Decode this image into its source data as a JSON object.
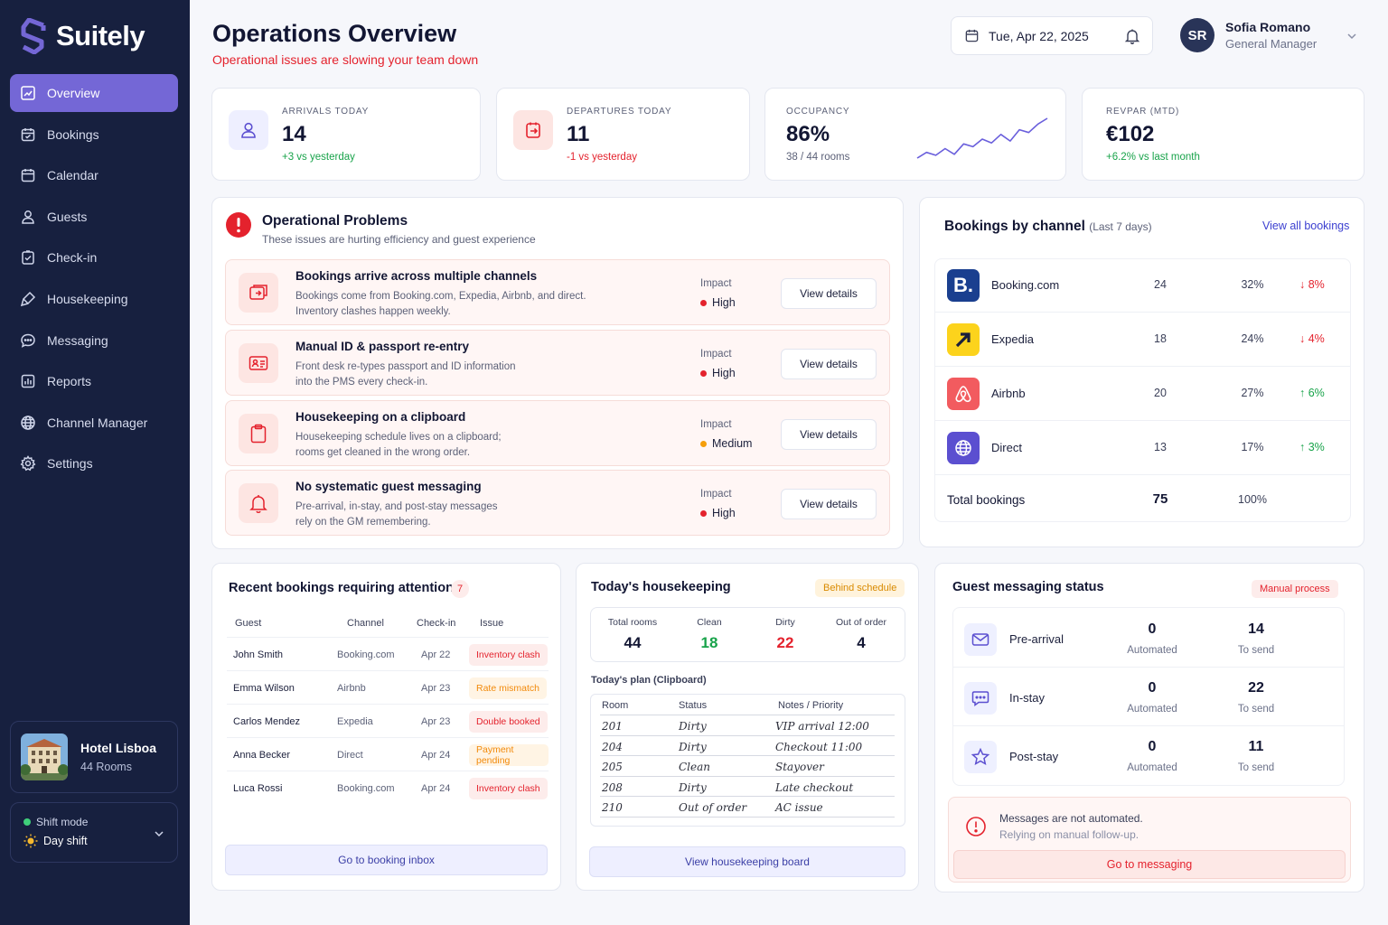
{
  "brand": {
    "name": "Suitely"
  },
  "nav": [
    {
      "label": "Overview",
      "icon": "overview-icon"
    },
    {
      "label": "Bookings",
      "icon": "bookings-icon"
    },
    {
      "label": "Calendar",
      "icon": "calendar-icon"
    },
    {
      "label": "Guests",
      "icon": "guests-icon"
    },
    {
      "label": "Check-in",
      "icon": "checkin-icon"
    },
    {
      "label": "Housekeeping",
      "icon": "housekeeping-icon"
    },
    {
      "label": "Messaging",
      "icon": "messaging-icon"
    },
    {
      "label": "Reports",
      "icon": "reports-icon"
    },
    {
      "label": "Channel Manager",
      "icon": "globe-icon"
    },
    {
      "label": "Settings",
      "icon": "gear-icon"
    }
  ],
  "hotel": {
    "name": "Hotel Lisboa",
    "rooms": "44 Rooms"
  },
  "shift": {
    "label": "Shift mode",
    "value": "Day shift"
  },
  "header": {
    "title": "Operations Overview",
    "subtitle": "Operational issues are slowing your team down",
    "date": "Tue, Apr 22, 2025"
  },
  "user": {
    "initials": "SR",
    "name": "Sofia Romano",
    "role": "General Manager"
  },
  "kpis": {
    "arrivals": {
      "label": "Arrivals today",
      "value": "14",
      "delta": "+3 vs yesterday"
    },
    "departures": {
      "label": "Departures today",
      "value": "11",
      "delta": "-1 vs yesterday"
    },
    "occupancy": {
      "label": "Occupancy",
      "value": "86%",
      "detail": "38 / 44 rooms",
      "sparkline": [
        30,
        36,
        33,
        40,
        34,
        45,
        42,
        50,
        46,
        55,
        48,
        60,
        57,
        66,
        72
      ]
    },
    "revpar": {
      "label": "RevPAR (MTD)",
      "value": "€102",
      "delta": "+6.2% vs last month"
    }
  },
  "problems": {
    "title": "Operational Problems",
    "subtitle": "These issues are hurting efficiency and guest experience",
    "impact_label": "Impact",
    "button_label": "View details",
    "items": [
      {
        "title": "Bookings arrive across multiple channels",
        "line1": "Bookings come from Booking.com, Expedia, Airbnb, and direct.",
        "line2": "Inventory clashes happen weekly.",
        "impact": "High",
        "impact_color": "#e4222d"
      },
      {
        "title": "Manual ID & passport re-entry",
        "line1": "Front desk re-types passport and ID information",
        "line2": "into the PMS every check-in.",
        "impact": "High",
        "impact_color": "#e4222d"
      },
      {
        "title": "Housekeeping on a clipboard",
        "line1": "Housekeeping schedule lives on a clipboard;",
        "line2": "rooms get cleaned in the wrong order.",
        "impact": "Medium",
        "impact_color": "#f59e0b"
      },
      {
        "title": "No systematic guest messaging",
        "line1": "Pre-arrival, in-stay, and post-stay messages",
        "line2": "rely on the GM remembering.",
        "impact": "High",
        "impact_color": "#e4222d"
      }
    ]
  },
  "channels": {
    "title": "Bookings by channel",
    "period": "(Last 7 days)",
    "link": "View all bookings",
    "rows": [
      {
        "name": "Booking.com",
        "count": "24",
        "pct": "32%",
        "trend": "8%",
        "direction": "down"
      },
      {
        "name": "Expedia",
        "count": "18",
        "pct": "24%",
        "trend": "4%",
        "direction": "down"
      },
      {
        "name": "Airbnb",
        "count": "20",
        "pct": "27%",
        "trend": "6%",
        "direction": "up"
      },
      {
        "name": "Direct",
        "count": "13",
        "pct": "17%",
        "trend": "3%",
        "direction": "up"
      }
    ],
    "total": {
      "label": "Total bookings",
      "count": "75",
      "pct": "100%"
    }
  },
  "recent": {
    "title": "Recent bookings requiring attention",
    "count": "7",
    "headers": {
      "guest": "Guest",
      "channel": "Channel",
      "checkin": "Check-in",
      "issue": "Issue"
    },
    "rows": [
      {
        "guest": "John Smith",
        "channel": "Booking.com",
        "checkin": "Apr 22",
        "issue": "Inventory clash",
        "tone": "red"
      },
      {
        "guest": "Emma Wilson",
        "channel": "Airbnb",
        "checkin": "Apr 23",
        "issue": "Rate mismatch",
        "tone": "orange"
      },
      {
        "guest": "Carlos Mendez",
        "channel": "Expedia",
        "checkin": "Apr 23",
        "issue": "Double booked",
        "tone": "red"
      },
      {
        "guest": "Anna Becker",
        "channel": "Direct",
        "checkin": "Apr 24",
        "issue": "Payment pending",
        "tone": "orange"
      },
      {
        "guest": "Luca Rossi",
        "channel": "Booking.com",
        "checkin": "Apr 24",
        "issue": "Inventory clash",
        "tone": "red"
      }
    ],
    "button": "Go to booking inbox"
  },
  "housekeeping": {
    "title": "Today's housekeeping",
    "badge": "Behind schedule",
    "stats": {
      "total": {
        "label": "Total rooms",
        "value": "44"
      },
      "clean": {
        "label": "Clean",
        "value": "18"
      },
      "dirty": {
        "label": "Dirty",
        "value": "22"
      },
      "out": {
        "label": "Out of order",
        "value": "4"
      }
    },
    "plan_title": "Today's plan (Clipboard)",
    "headers": {
      "room": "Room",
      "status": "Status",
      "notes": "Notes / Priority"
    },
    "rows": [
      {
        "room": "201",
        "status": "Dirty",
        "notes": "VIP arrival 12:00"
      },
      {
        "room": "204",
        "status": "Dirty",
        "notes": "Checkout 11:00"
      },
      {
        "room": "205",
        "status": "Clean",
        "notes": "Stayover"
      },
      {
        "room": "208",
        "status": "Dirty",
        "notes": "Late checkout"
      },
      {
        "room": "210",
        "status": "Out of order",
        "notes": "AC issue"
      }
    ],
    "button": "View housekeeping board"
  },
  "messaging": {
    "title": "Guest messaging status",
    "badge": "Manual process",
    "automated_label": "Automated",
    "send_label": "To send",
    "rows": [
      {
        "name": "Pre-arrival",
        "automated": "0",
        "to_send": "14"
      },
      {
        "name": "In-stay",
        "automated": "0",
        "to_send": "22"
      },
      {
        "name": "Post-stay",
        "automated": "0",
        "to_send": "11"
      }
    ],
    "alert_title": "Messages are not automated.",
    "alert_sub": "Relying on manual follow-up.",
    "button": "Go to messaging"
  }
}
